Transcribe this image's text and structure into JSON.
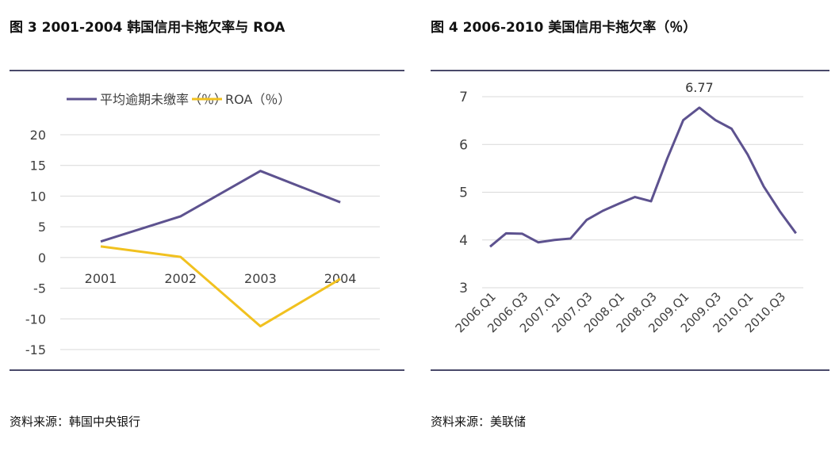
{
  "left": {
    "figure_title": "图  3 2001-2004 韩国信用卡拖欠率与 ROA",
    "source": "资料来源：韩国中央银行"
  },
  "right": {
    "figure_title": "图  4 2006-2010 美国信用卡拖欠率（％）",
    "source": "资料来源：美联储"
  },
  "chart_data": [
    {
      "type": "line",
      "title": "",
      "categories": [
        "2001",
        "2002",
        "2003",
        "2004"
      ],
      "series": [
        {
          "name": "平均逾期未缴率（％）",
          "color": "#5d528f",
          "values": [
            2.6,
            6.7,
            14.1,
            9.0
          ]
        },
        {
          "name": "ROA（％）",
          "color": "#f1c11f",
          "values": [
            1.8,
            0.1,
            -11.2,
            -3.5
          ]
        }
      ],
      "yticks": [
        "20",
        "15",
        "10",
        "5",
        "0",
        "-5",
        "-10",
        "-15"
      ],
      "ylim": [
        -15,
        20
      ],
      "grid": true,
      "legend": "top"
    },
    {
      "type": "line",
      "title": "",
      "categories": [
        "2006.Q1",
        "2006.Q2",
        "2006.Q3",
        "2006.Q4",
        "2007.Q1",
        "2007.Q2",
        "2007.Q3",
        "2007.Q4",
        "2008.Q1",
        "2008.Q2",
        "2008.Q3",
        "2008.Q4",
        "2009.Q1",
        "2009.Q2",
        "2009.Q3",
        "2009.Q4",
        "2010.Q1",
        "2010.Q2",
        "2010.Q3",
        "2010.Q4"
      ],
      "tick_labels": [
        "2006.Q1",
        "2006.Q3",
        "2007.Q1",
        "2007.Q3",
        "2008.Q1",
        "2008.Q3",
        "2009.Q1",
        "2009.Q3",
        "2010.Q1",
        "2010.Q3"
      ],
      "series": [
        {
          "color": "#5d528f",
          "values": [
            3.86,
            4.14,
            4.13,
            3.95,
            4.0,
            4.03,
            4.42,
            4.61,
            4.76,
            4.9,
            4.81,
            5.7,
            6.51,
            6.77,
            6.51,
            6.33,
            5.79,
            5.12,
            4.6,
            4.14
          ]
        }
      ],
      "data_labels": [
        {
          "category": "2009.Q2",
          "text": "6.77"
        }
      ],
      "yticks": [
        "7",
        "6",
        "5",
        "4",
        "3"
      ],
      "ylim": [
        3,
        7
      ],
      "grid": true,
      "legend": "none"
    }
  ]
}
